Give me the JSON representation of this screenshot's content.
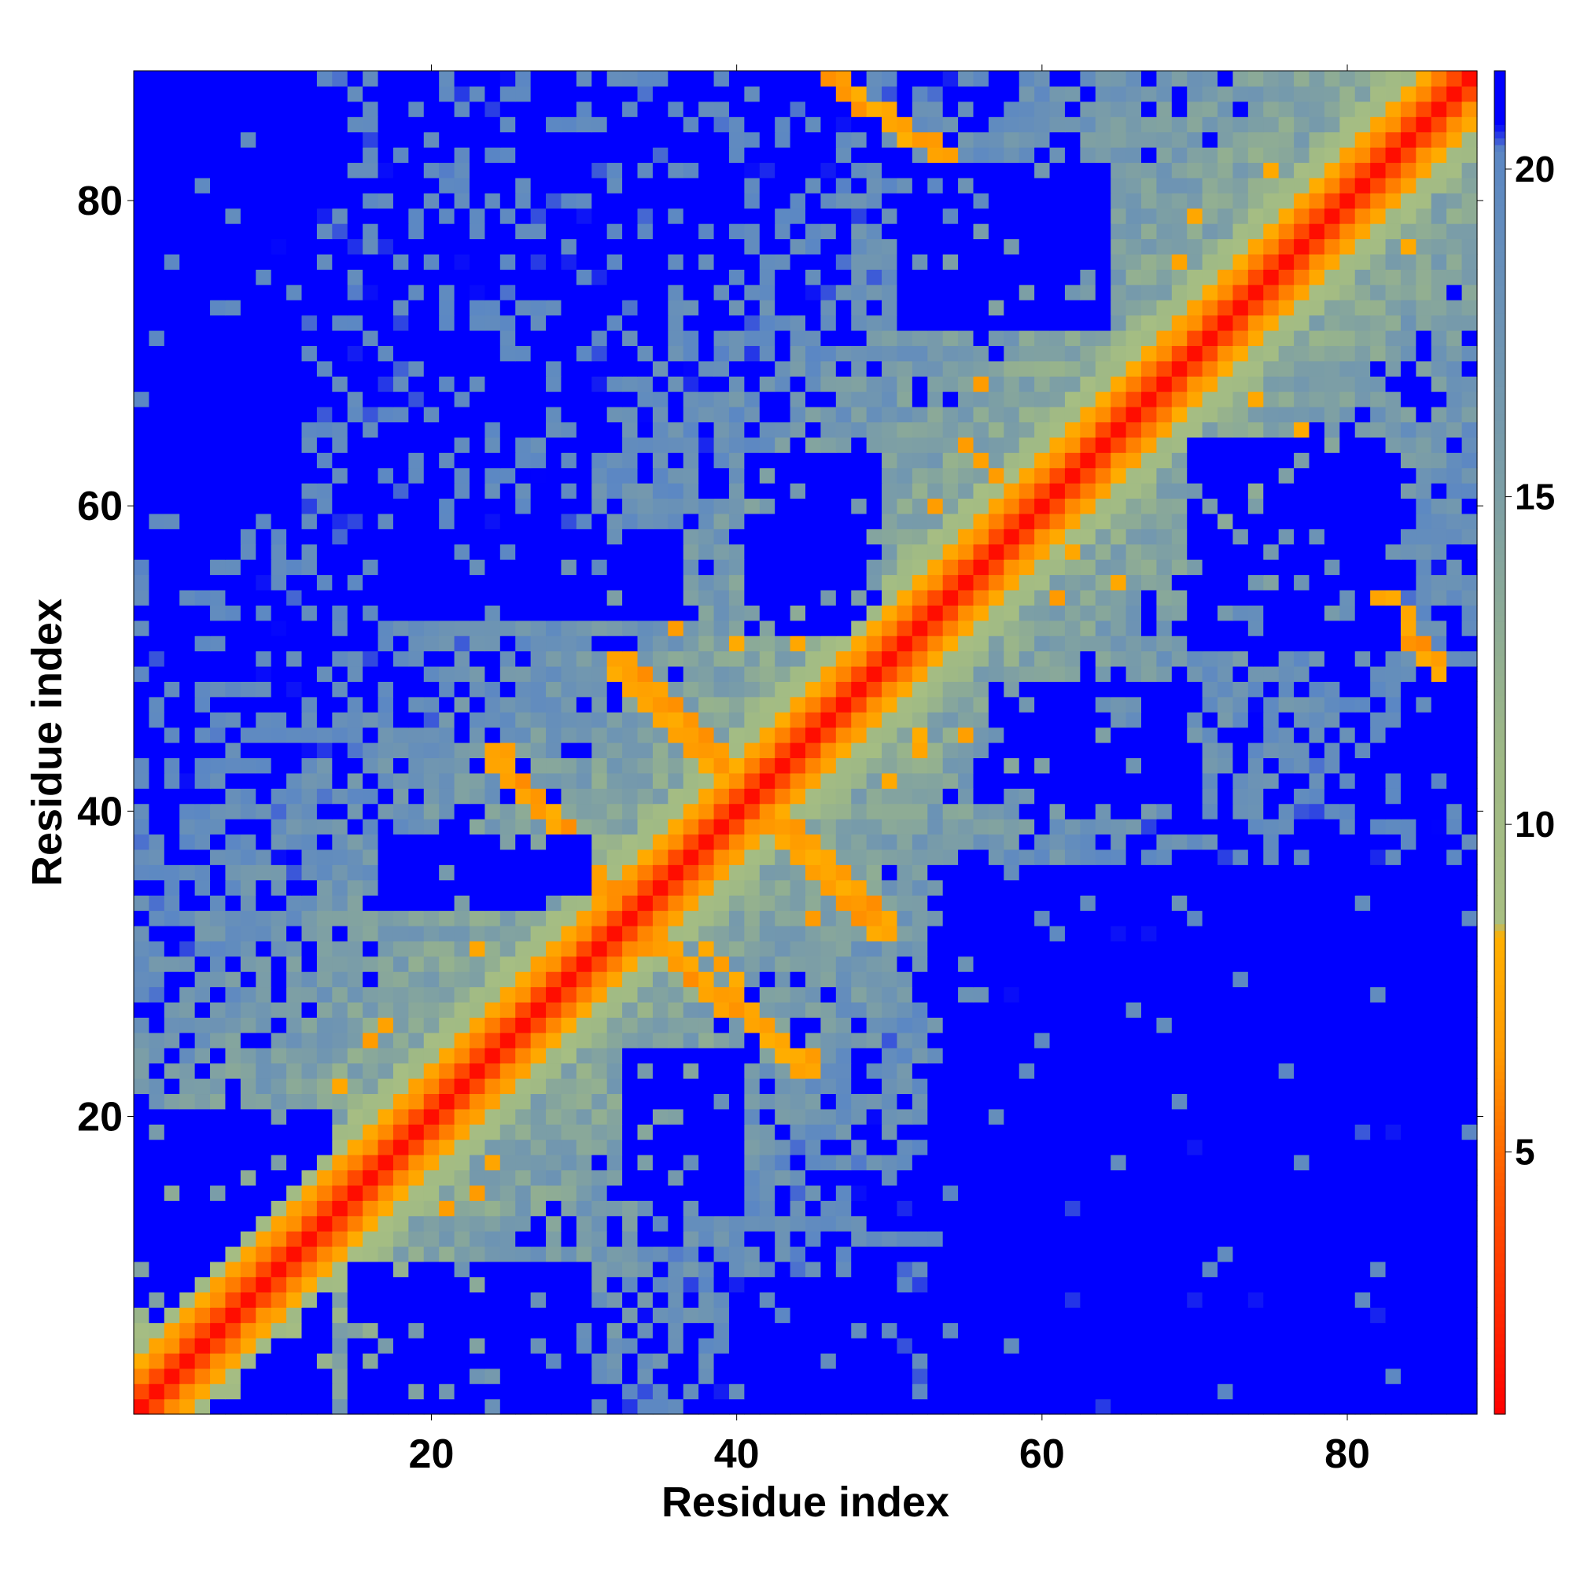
{
  "chart_data": {
    "type": "heatmap",
    "title": "",
    "xlabel": "Residue index",
    "ylabel": "Residue index",
    "n_residues": 88,
    "xlim": [
      0.5,
      88.5
    ],
    "ylim": [
      0.5,
      88.5
    ],
    "x_ticks": [
      20,
      40,
      60,
      80
    ],
    "y_ticks": [
      20,
      40,
      60,
      80
    ],
    "colorbar": {
      "ticks": [
        5,
        10,
        15,
        20
      ],
      "range": [
        1,
        21.5
      ],
      "stops": [
        {
          "value": 1,
          "color": "#ff0000"
        },
        {
          "value": 4.5,
          "color": "#ff5a00"
        },
        {
          "value": 6.5,
          "color": "#ff9a00"
        },
        {
          "value": 8.3,
          "color": "#ffb000"
        },
        {
          "value": 8.5,
          "color": "#a8bf82"
        },
        {
          "value": 11,
          "color": "#9fb985"
        },
        {
          "value": 15,
          "color": "#7d9fa5"
        },
        {
          "value": 20.3,
          "color": "#5b87c4"
        },
        {
          "value": 20.7,
          "color": "#0000ff"
        },
        {
          "value": 21.5,
          "color": "#0000ff"
        }
      ]
    },
    "description_values": {
      "diagonal_distance": 3.8,
      "near_diagonal_band_width": 4,
      "blue_saturation_threshold": 20.5
    },
    "contact_regions": [
      {
        "x": [
          32,
          50
        ],
        "y": [
          32,
          50
        ],
        "pattern": "antiparallel-cross"
      },
      {
        "x": [
          24,
          33
        ],
        "y": [
          33,
          44
        ],
        "pattern": "off-diagonal-strand"
      },
      {
        "x": [
          34,
          45
        ],
        "y": [
          23,
          32
        ],
        "pattern": "off-diagonal-strand"
      },
      {
        "x": [
          46,
          55
        ],
        "y": [
          82,
          88
        ],
        "pattern": "off-diagonal-strand"
      },
      {
        "x": [
          82,
          88
        ],
        "y": [
          46,
          55
        ],
        "pattern": "off-diagonal-strand"
      },
      {
        "x": [
          55,
          62
        ],
        "y": [
          57,
          64
        ],
        "pattern": "near-diagonal"
      }
    ],
    "blue_regions": [
      {
        "x": [
          1,
          13
        ],
        "y": [
          1,
          20
        ]
      },
      {
        "x": [
          15,
          30
        ],
        "y": [
          1,
          10
        ]
      },
      {
        "x": [
          33,
          40
        ],
        "y": [
          14,
          24
        ]
      },
      {
        "x": [
          41,
          50
        ],
        "y": [
          1,
          9
        ]
      },
      {
        "x": [
          53,
          88
        ],
        "y": [
          1,
          36
        ]
      },
      {
        "x": [
          57,
          70
        ],
        "y": [
          41,
          48
        ]
      },
      {
        "x": [
          41,
          49
        ],
        "y": [
          52,
          63
        ]
      },
      {
        "x": [
          17,
          36
        ],
        "y": [
          53,
          58
        ]
      },
      {
        "x": [
          17,
          30
        ],
        "y": [
          34,
          38
        ]
      },
      {
        "x": [
          51,
          64
        ],
        "y": [
          72,
          82
        ]
      },
      {
        "x": [
          70,
          83
        ],
        "y": [
          51,
          64
        ]
      },
      {
        "x": [
          1,
          11
        ],
        "y": [
          60,
          88
        ]
      },
      {
        "x": [
          84,
          88
        ],
        "y": [
          42,
          48
        ]
      }
    ]
  }
}
